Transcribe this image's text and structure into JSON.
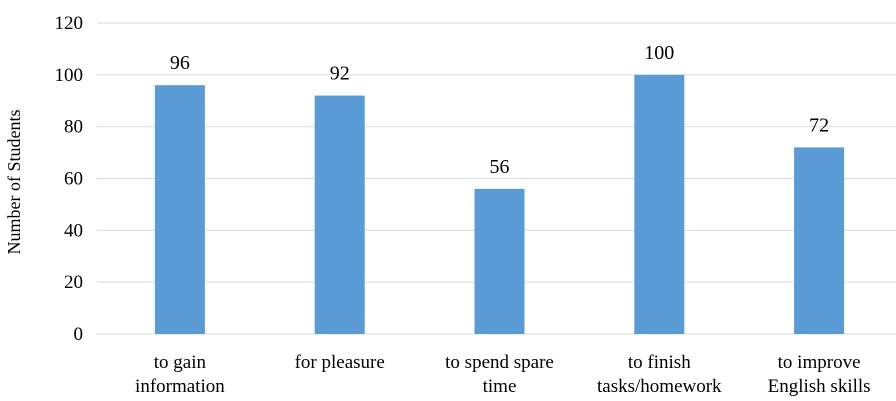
{
  "chart_data": {
    "type": "bar",
    "categories": [
      [
        "to gain",
        "information"
      ],
      [
        "for pleasure"
      ],
      [
        "to spend spare",
        "time"
      ],
      [
        "to finish",
        "tasks/homework"
      ],
      [
        "to improve",
        "English skills"
      ]
    ],
    "values": [
      96,
      92,
      56,
      100,
      72
    ],
    "data_labels": [
      "96",
      "92",
      "56",
      "100",
      "72"
    ],
    "ylabel": "Number of Students",
    "ylim": [
      0,
      120
    ],
    "yticks": [
      "0",
      "20",
      "40",
      "60",
      "80",
      "100",
      "120"
    ],
    "grid": true,
    "legend": "none",
    "bar_color": "#5b9bd5",
    "grid_color": "#d9d9d9"
  }
}
